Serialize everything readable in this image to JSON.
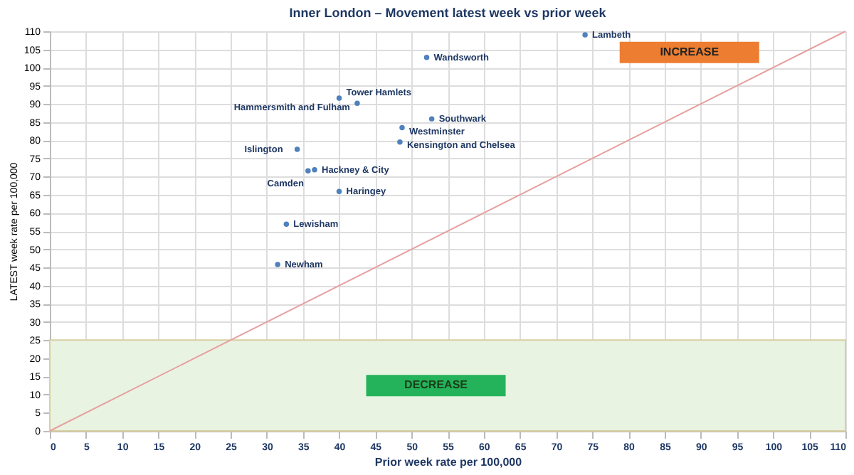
{
  "chart_data": {
    "type": "scatter",
    "title": "Inner London – Movement latest week vs prior week",
    "xlabel": "Prior week rate per 100,000",
    "ylabel": "LATEST week rate per 100,000",
    "x": [
      74,
      52.1,
      40.0,
      42.5,
      52.8,
      48.7,
      48.4,
      34.2,
      35.7,
      36.6,
      40.0,
      32.7,
      31.5
    ],
    "series": [
      {
        "color": "#4f81bd",
        "marker": "circle",
        "values": [
          109,
          102.8,
          91.6,
          90.2,
          85.9,
          83.5,
          79.5,
          77.5,
          71.6,
          71.9,
          65.9,
          56.9,
          45.8
        ]
      },
      {
        "type": "line",
        "color": "#e6a0a0",
        "x": [
          0,
          110
        ],
        "values": [
          0,
          110
        ]
      }
    ],
    "xlim": [
      0,
      110
    ],
    "ylim": [
      0,
      110
    ],
    "xticks": [
      0,
      5,
      10,
      15,
      20,
      25,
      30,
      35,
      40,
      45,
      50,
      55,
      60,
      65,
      70,
      75,
      80,
      85,
      90,
      95,
      100,
      105,
      110
    ],
    "yticks": [
      0,
      5,
      10,
      15,
      20,
      25,
      30,
      35,
      40,
      45,
      50,
      55,
      60,
      65,
      70,
      75,
      80,
      85,
      90,
      95,
      100,
      105,
      110
    ],
    "bands": [
      {
        "axis": "y",
        "from": 0,
        "to": 25,
        "color": "#e9f3e2",
        "label": "DECREASE"
      }
    ],
    "annotations": [
      "INCREASE",
      {
        "text": "Lambeth",
        "x": 74,
        "y": 109
      },
      {
        "text": "Wandsworth",
        "x": 52.1,
        "y": 102.8
      },
      {
        "text": "Tower Hamlets",
        "x": 40.0,
        "y": 91.6
      },
      {
        "text": "Hammersmith and Fulham",
        "x": 42.5,
        "y": 90.2
      },
      {
        "text": "Southwark",
        "x": 52.8,
        "y": 85.9
      },
      {
        "text": "Westminster",
        "x": 48.7,
        "y": 83.5
      },
      {
        "text": "Kensington and Chelsea",
        "x": 48.4,
        "y": 79.5
      },
      {
        "text": "Islington",
        "x": 34.2,
        "y": 77.5
      },
      {
        "text": "Camden",
        "x": 35.7,
        "y": 71.6
      },
      {
        "text": "Hackney & City",
        "x": 36.6,
        "y": 71.9
      },
      {
        "text": "Haringey",
        "x": 40.0,
        "y": 65.9
      },
      {
        "text": "Lewisham",
        "x": 32.7,
        "y": 56.9
      },
      {
        "text": "Newham",
        "x": 31.5,
        "y": 45.8
      }
    ],
    "grid": true
  }
}
